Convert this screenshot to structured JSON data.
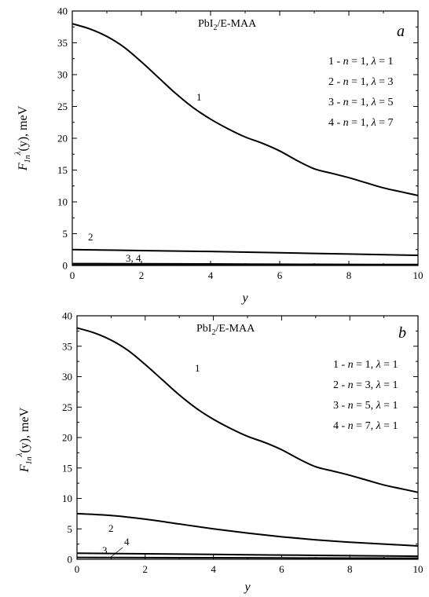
{
  "chart_data": [
    {
      "type": "line",
      "panel_label": "a",
      "title_main": "PbI",
      "title_sub": "2",
      "title_rest": "/E-MAA",
      "xlabel": "y",
      "ylabel": {
        "main": "F",
        "sub": "1n",
        "sup": "λ",
        "rest": "(y), meV"
      },
      "xlim": [
        0,
        10
      ],
      "ylim": [
        0,
        40
      ],
      "xticks": [
        "0",
        "2",
        "4",
        "6",
        "8",
        "10"
      ],
      "yticks": [
        "0",
        "5",
        "10",
        "15",
        "20",
        "25",
        "30",
        "35",
        "40"
      ],
      "legend": [
        "1 - n = 1, λ = 1",
        "2 - n = 1, λ = 3",
        "3 - n = 1, λ = 5",
        "4 - n = 1, λ = 7"
      ],
      "curve_labels": [
        "1",
        "2",
        "3, 4"
      ],
      "series": [
        {
          "name": "1",
          "x": [
            0,
            0.5,
            1,
            1.5,
            2,
            2.5,
            3,
            3.5,
            4,
            4.5,
            5,
            5.5,
            6,
            6.5,
            7,
            7.5,
            8,
            8.5,
            9,
            9.5,
            10
          ],
          "values": [
            38,
            37.2,
            36,
            34.3,
            32,
            29.5,
            27,
            24.8,
            23,
            21.5,
            20.2,
            19.2,
            18,
            16.5,
            15.2,
            14.5,
            13.8,
            13,
            12.2,
            11.6,
            11
          ]
        },
        {
          "name": "2",
          "x": [
            0,
            2,
            4,
            6,
            8,
            10
          ],
          "values": [
            2.5,
            2.35,
            2.2,
            2.0,
            1.8,
            1.6
          ]
        },
        {
          "name": "3",
          "x": [
            0,
            2,
            4,
            6,
            8,
            10
          ],
          "values": [
            0.3,
            0.27,
            0.24,
            0.2,
            0.17,
            0.15
          ]
        },
        {
          "name": "4",
          "x": [
            0,
            2,
            4,
            6,
            8,
            10
          ],
          "values": [
            0.05,
            0.05,
            0.04,
            0.04,
            0.03,
            0.03
          ]
        }
      ]
    },
    {
      "type": "line",
      "panel_label": "b",
      "title_main": "PbI",
      "title_sub": "2",
      "title_rest": "/E-MAA",
      "xlabel": "y",
      "ylabel": {
        "main": "F",
        "sub": "1n",
        "sup": "λ",
        "rest": "(y), meV"
      },
      "xlim": [
        0,
        10
      ],
      "ylim": [
        0,
        40
      ],
      "xticks": [
        "0",
        "2",
        "4",
        "6",
        "8",
        "10"
      ],
      "yticks": [
        "0",
        "5",
        "10",
        "15",
        "20",
        "25",
        "30",
        "35",
        "40"
      ],
      "legend": [
        "1 - n = 1, λ = 1",
        "2 - n = 3, λ = 1",
        "3 - n = 5, λ = 1",
        "4 - n = 7, λ = 1"
      ],
      "curve_labels": [
        "1",
        "2",
        "3",
        "4"
      ],
      "series": [
        {
          "name": "1",
          "x": [
            0,
            0.5,
            1,
            1.5,
            2,
            2.5,
            3,
            3.5,
            4,
            4.5,
            5,
            5.5,
            6,
            6.5,
            7,
            7.5,
            8,
            8.5,
            9,
            9.5,
            10
          ],
          "values": [
            38,
            37.2,
            36,
            34.3,
            32,
            29.5,
            27,
            24.8,
            23,
            21.5,
            20.2,
            19.2,
            18,
            16.5,
            15.2,
            14.5,
            13.8,
            13,
            12.2,
            11.6,
            11
          ]
        },
        {
          "name": "2",
          "x": [
            0,
            1,
            2,
            3,
            4,
            5,
            6,
            7,
            8,
            9,
            10
          ],
          "values": [
            7.5,
            7.2,
            6.6,
            5.8,
            5.0,
            4.3,
            3.7,
            3.2,
            2.8,
            2.5,
            2.2
          ]
        },
        {
          "name": "3",
          "x": [
            0,
            2,
            4,
            6,
            8,
            10
          ],
          "values": [
            1.0,
            0.9,
            0.8,
            0.7,
            0.6,
            0.5
          ]
        },
        {
          "name": "4",
          "x": [
            0,
            2,
            4,
            6,
            8,
            10
          ],
          "values": [
            0.3,
            0.28,
            0.25,
            0.22,
            0.2,
            0.18
          ]
        }
      ]
    }
  ]
}
